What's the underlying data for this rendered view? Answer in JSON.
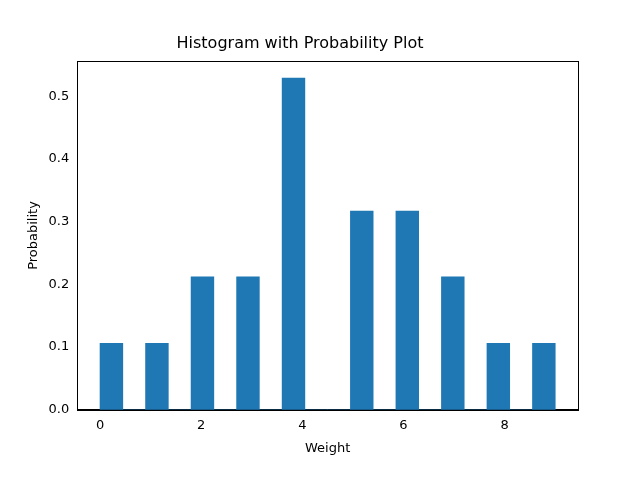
{
  "chart_data": {
    "type": "histogram",
    "title": "Histogram with Probability Plot",
    "x_label": "Weight",
    "y_label": "Probability",
    "bins": [
      0,
      0.45,
      0.9,
      1.35,
      1.8,
      2.25,
      2.7,
      3.15,
      3.6,
      4.05,
      4.5,
      4.95,
      5.4,
      5.85,
      6.3,
      6.75,
      7.2,
      7.65,
      8.1,
      8.55,
      9
    ],
    "values": [
      0.106,
      0,
      0.106,
      0,
      0.212,
      0,
      0.212,
      0,
      0.529,
      0,
      0,
      0.317,
      0,
      0.317,
      0,
      0.212,
      0,
      0.106,
      0,
      0.106
    ],
    "color": "#1f77b4",
    "xlim": [
      -0.45,
      9.45
    ],
    "xticks": [
      0,
      2,
      4,
      6,
      8
    ],
    "ylim": [
      0,
      0.556
    ],
    "yticks": [
      {
        "value": 0,
        "label": "0.0"
      },
      {
        "value": 0.1,
        "label": "0.1"
      },
      {
        "value": 0.2,
        "label": "0.2"
      },
      {
        "value": 0.3,
        "label": "0.3"
      },
      {
        "value": 0.4,
        "label": "0.4"
      },
      {
        "value": 0.5,
        "label": "0.5"
      }
    ],
    "grid": false
  }
}
